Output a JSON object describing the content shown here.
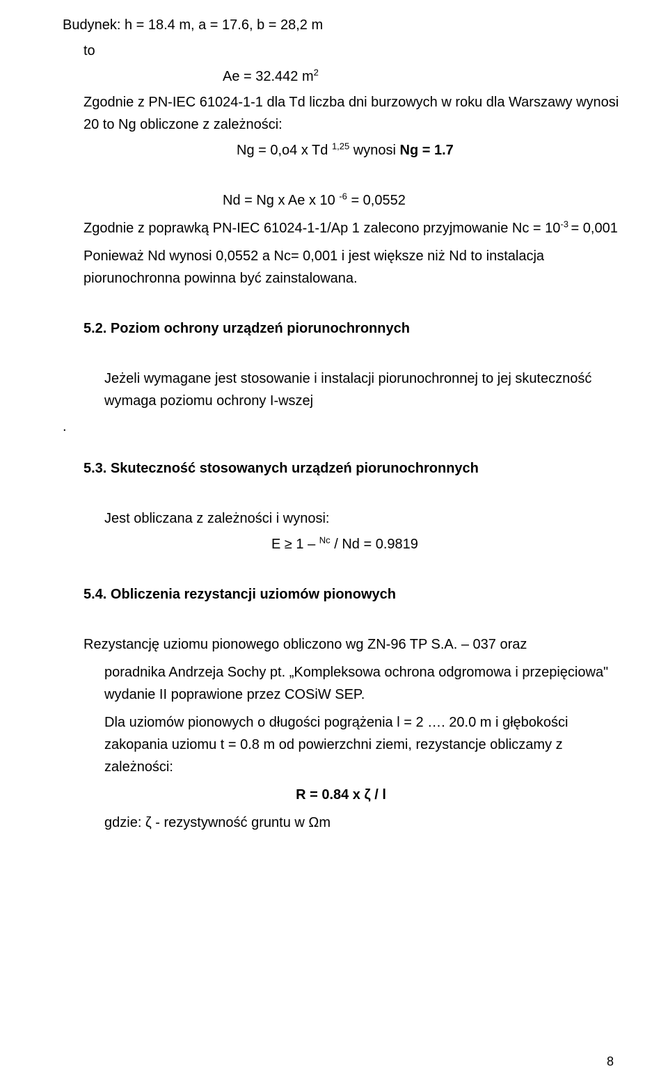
{
  "p1": {
    "t1": "Budynek: h = 18.4 m, a = 17.6, b = 28,2 m",
    "t2": "to",
    "t3a": "Ae =  32.442 m",
    "t3b": "2",
    "t4a": "Zgodnie z PN-IEC 61024-1-1 dla Td liczba dni burzowych w roku dla Warszawy wynosi 20 to Ng obliczone z zależności:",
    "t5a": "Ng = 0,o4 x Td ",
    "t5b": "1,25",
    "t5c": "   wynosi ",
    "t5d": "Ng = 1.7",
    "t6a": "Nd = Ng x Ae x 10 ",
    "t6b": "-6",
    "t6c": " = 0,0552",
    "t7a": "Zgodnie z poprawką PN-IEC 61024-1-1/Ap 1 zalecono przyjmowanie Nc = 10",
    "t7b": "-3 ",
    "t7c": " = 0,001",
    "t8a": "Ponieważ Nd wynosi 0,0552 a Nc= 0,001 i jest większe niż Nd to instalacja piorunochronna powinna być zainstalowana."
  },
  "s52": {
    "h": "5.2. Poziom ochrony urządzeń piorunochronnych",
    "p": "Jeżeli wymagane jest stosowanie i instalacji piorunochronnej to jej  skuteczność wymaga poziomu ochrony I-wszej",
    "dot": "."
  },
  "s53": {
    "h": "5.3. Skuteczność stosowanych urządzeń piorunochronnych",
    "p1": "Jest obliczana z zależności  i wynosi:",
    "f1a": "E  ≥  1 – ",
    "f1b": "Nc",
    "f1c": " / Nd = 0.9819"
  },
  "s54": {
    "h": "5.4. Obliczenia rezystancji uziomów pionowych",
    "p1": "Rezystancję uziomu pionowego obliczono wg ZN-96 TP S.A. – 037 oraz",
    "p2": "poradnika Andrzeja Sochy pt. „Kompleksowa ochrona odgromowa i przepięciowa\" wydanie II poprawione przez COSiW SEP.",
    "p3": "Dla uziomów pionowych o długości pogrążenia l = 2 …. 20.0 m i głębokości zakopania uziomu t = 0.8 m od powierzchni ziemi, rezystancje obliczamy z zależności:",
    "f": "R = 0.84 x ζ / l",
    "p4": "gdzie: ζ   - rezystywność gruntu w Ωm"
  },
  "page": "8"
}
